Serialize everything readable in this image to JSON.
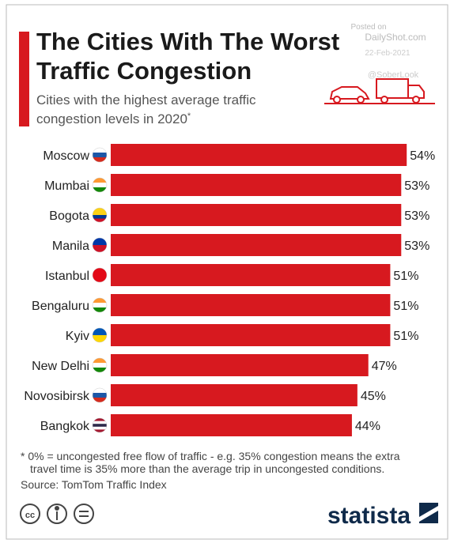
{
  "chart_data": {
    "type": "bar",
    "orientation": "horizontal",
    "title_lines": [
      "The Cities With The Worst",
      "Traffic Congestion"
    ],
    "subtitle_lines": [
      "Cities with the highest average traffic",
      "congestion levels in 2020"
    ],
    "subtitle_marker": "*",
    "categories": [
      "Moscow",
      "Mumbai",
      "Bogota",
      "Manila",
      "Istanbul",
      "Bengaluru",
      "Kyiv",
      "New Delhi",
      "Novosibirsk",
      "Bangkok"
    ],
    "values": [
      54,
      53,
      53,
      53,
      51,
      51,
      51,
      47,
      45,
      44
    ],
    "value_labels": [
      "54%",
      "53%",
      "53%",
      "53%",
      "51%",
      "51%",
      "51%",
      "47%",
      "45%",
      "44%"
    ],
    "color": "#d7191f",
    "footnote_lines": [
      "* 0% = uncongested free flow of traffic - e.g. 35% congestion means the extra",
      "travel time is 35% more than the average trip in uncongested conditions."
    ],
    "source": "Source: TomTom Traffic Index"
  },
  "watermark": {
    "lines": [
      "Posted on",
      "DailyShot.com",
      "22-Feb-2021",
      "@SoberLook"
    ]
  },
  "brand": "statista"
}
